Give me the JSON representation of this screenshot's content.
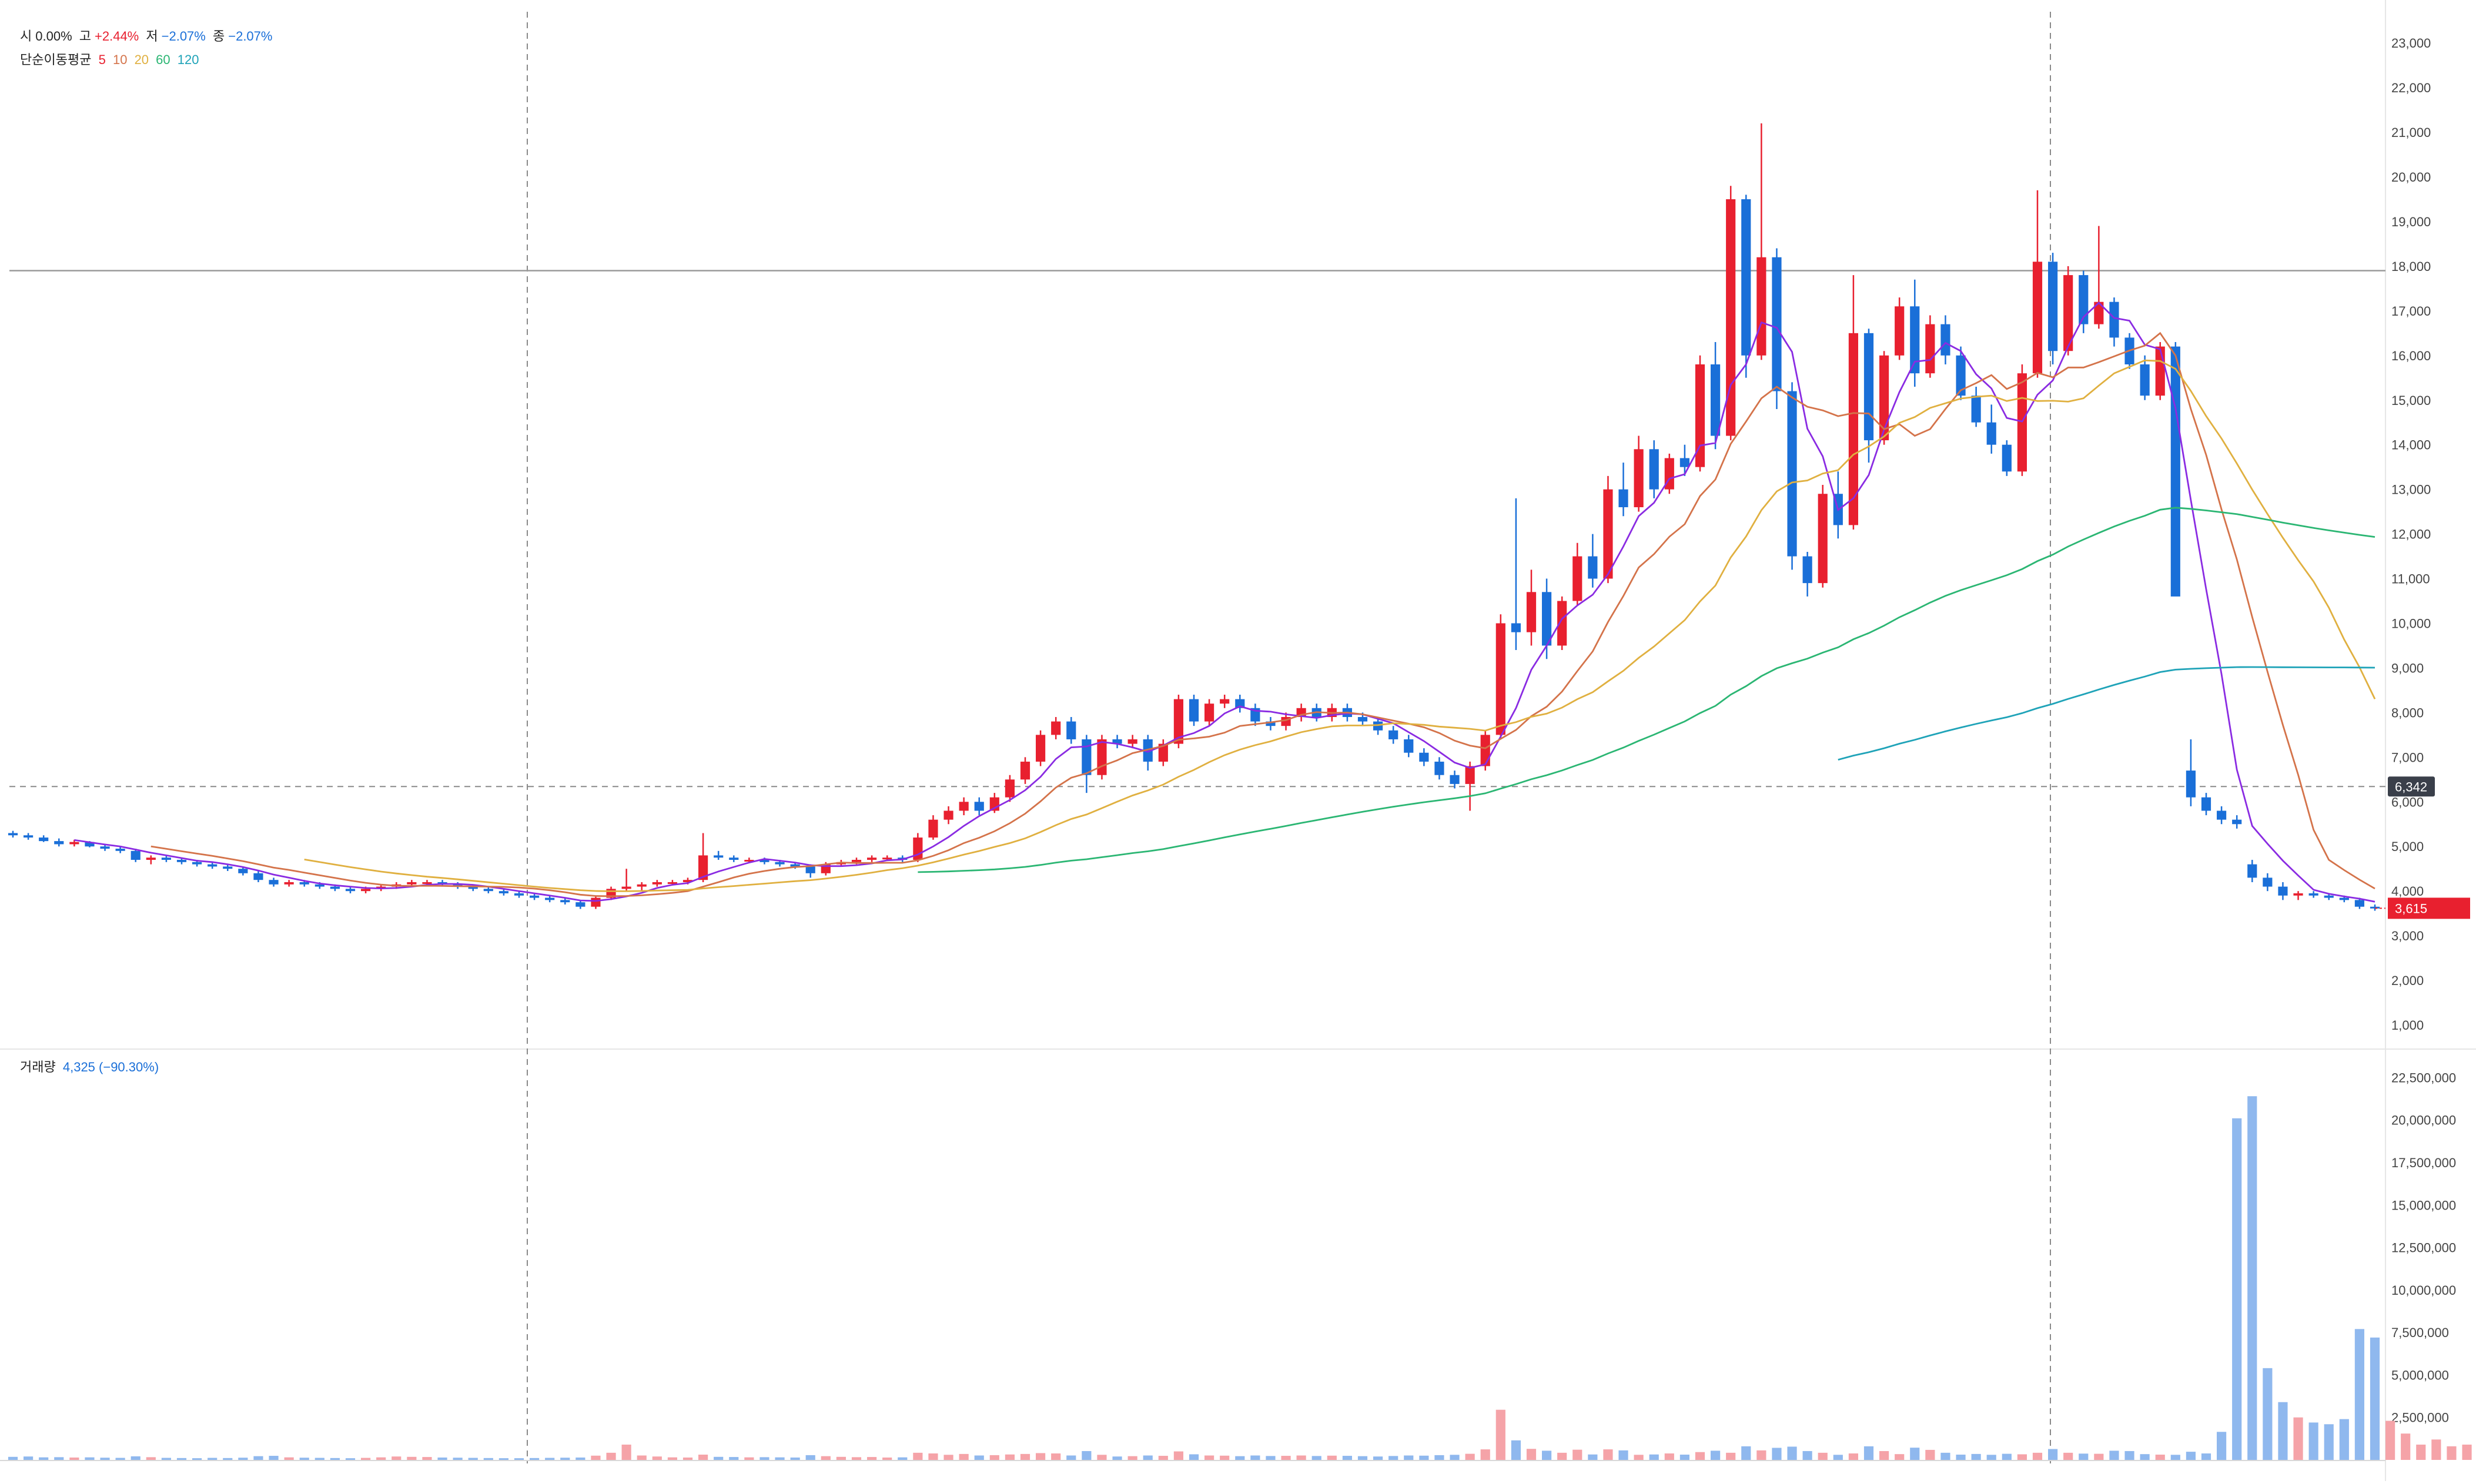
{
  "legend": {
    "open_label": "시",
    "open_value": "0.00%",
    "high_label": "고",
    "high_value": "+2.44%",
    "low_label": "저",
    "low_value": "−2.07%",
    "close_label": "종",
    "close_value": "−2.07%",
    "ma_title": "단순이동평균",
    "ma_periods": [
      "5",
      "10",
      "20",
      "60",
      "120"
    ],
    "volume_label": "거래량",
    "volume_value": "4,325 (−90.30%)"
  },
  "colors": {
    "up": "#e8202f",
    "down": "#1a6fd8",
    "ma5": "#e8202f",
    "ma5_line": "#8a2be2",
    "ma10": "#d4734a",
    "ma20": "#e0b040",
    "ma60": "#2bb673",
    "ma120": "#1fa3b8",
    "vol_up": "#f5a3a8",
    "vol_down": "#8fb8ee",
    "last_price_bg": "#e8202f",
    "crosshair_label_bg": "#3a3f4a"
  },
  "price_axis": {
    "ticks": [
      "23,000",
      "22,000",
      "21,000",
      "20,000",
      "19,000",
      "18,000",
      "17,000",
      "16,000",
      "15,000",
      "14,000",
      "13,000",
      "12,000",
      "11,000",
      "10,000",
      "9,000",
      "8,000",
      "7,000",
      "6,000",
      "5,000",
      "4,000",
      "3,000",
      "2,000",
      "1,000"
    ],
    "crosshair_label": "6,342",
    "last_price_label": "3,615"
  },
  "volume_axis": {
    "ticks": [
      "22,500,000",
      "20,000,000",
      "17,500,000",
      "15,000,000",
      "12,500,000",
      "10,000,000",
      "7,500,000",
      "5,000,000",
      "2,500,000"
    ]
  },
  "chart_data": {
    "type": "candlestick",
    "price_range": [
      500,
      23700
    ],
    "volume_range": [
      0,
      24000000
    ],
    "reference_line_price": 17900,
    "crosshair_price": 6342,
    "last_price": 3615,
    "grid": false,
    "candles": [
      [
        5300,
        5350,
        5200,
        5250
      ],
      [
        5250,
        5300,
        5150,
        5200
      ],
      [
        5200,
        5250,
        5100,
        5120
      ],
      [
        5120,
        5180,
        5000,
        5050
      ],
      [
        5050,
        5150,
        5000,
        5100
      ],
      [
        5100,
        5120,
        4980,
        5000
      ],
      [
        5000,
        5050,
        4900,
        4950
      ],
      [
        4950,
        5000,
        4850,
        4900
      ],
      [
        4900,
        4950,
        4650,
        4700
      ],
      [
        4700,
        4800,
        4600,
        4750
      ],
      [
        4750,
        4800,
        4650,
        4700
      ],
      [
        4700,
        4750,
        4600,
        4650
      ],
      [
        4650,
        4700,
        4550,
        4600
      ],
      [
        4600,
        4650,
        4500,
        4550
      ],
      [
        4550,
        4600,
        4450,
        4500
      ],
      [
        4500,
        4550,
        4350,
        4400
      ],
      [
        4400,
        4450,
        4200,
        4250
      ],
      [
        4250,
        4300,
        4100,
        4150
      ],
      [
        4150,
        4250,
        4100,
        4200
      ],
      [
        4200,
        4250,
        4100,
        4150
      ],
      [
        4150,
        4200,
        4050,
        4100
      ],
      [
        4100,
        4150,
        4000,
        4050
      ],
      [
        4050,
        4100,
        3950,
        4000
      ],
      [
        4000,
        4100,
        3950,
        4050
      ],
      [
        4050,
        4150,
        4000,
        4100
      ],
      [
        4100,
        4200,
        4050,
        4150
      ],
      [
        4150,
        4250,
        4100,
        4200
      ],
      [
        4200,
        4250,
        4150,
        4200
      ],
      [
        4200,
        4250,
        4100,
        4150
      ],
      [
        4150,
        4200,
        4050,
        4100
      ],
      [
        4100,
        4150,
        4000,
        4050
      ],
      [
        4050,
        4100,
        3950,
        4000
      ],
      [
        4000,
        4050,
        3900,
        3950
      ],
      [
        3950,
        4000,
        3850,
        3900
      ],
      [
        3900,
        3950,
        3800,
        3850
      ],
      [
        3850,
        3900,
        3750,
        3800
      ],
      [
        3800,
        3850,
        3700,
        3750
      ],
      [
        3750,
        3800,
        3600,
        3650
      ],
      [
        3650,
        3900,
        3600,
        3850
      ],
      [
        3850,
        4100,
        3800,
        4050
      ],
      [
        4050,
        4500,
        4000,
        4100
      ],
      [
        4100,
        4200,
        4000,
        4150
      ],
      [
        4150,
        4250,
        4100,
        4200
      ],
      [
        4200,
        4250,
        4150,
        4200
      ],
      [
        4200,
        4300,
        4150,
        4250
      ],
      [
        4250,
        5300,
        4200,
        4800
      ],
      [
        4800,
        4900,
        4700,
        4750
      ],
      [
        4750,
        4800,
        4650,
        4700
      ],
      [
        4700,
        4750,
        4650,
        4700
      ],
      [
        4700,
        4750,
        4600,
        4650
      ],
      [
        4650,
        4700,
        4550,
        4600
      ],
      [
        4600,
        4650,
        4500,
        4550
      ],
      [
        4550,
        4600,
        4300,
        4400
      ],
      [
        4400,
        4650,
        4350,
        4600
      ],
      [
        4600,
        4700,
        4550,
        4650
      ],
      [
        4650,
        4750,
        4600,
        4700
      ],
      [
        4700,
        4800,
        4650,
        4750
      ],
      [
        4750,
        4800,
        4700,
        4750
      ],
      [
        4750,
        4800,
        4650,
        4700
      ],
      [
        4700,
        5300,
        4650,
        5200
      ],
      [
        5200,
        5700,
        5150,
        5600
      ],
      [
        5600,
        5900,
        5500,
        5800
      ],
      [
        5800,
        6100,
        5700,
        6000
      ],
      [
        6000,
        6100,
        5700,
        5800
      ],
      [
        5800,
        6200,
        5750,
        6100
      ],
      [
        6100,
        6600,
        6000,
        6500
      ],
      [
        6500,
        7000,
        6400,
        6900
      ],
      [
        6900,
        7600,
        6800,
        7500
      ],
      [
        7500,
        7900,
        7400,
        7800
      ],
      [
        7800,
        7900,
        7300,
        7400
      ],
      [
        7400,
        7500,
        6200,
        6600
      ],
      [
        6600,
        7500,
        6500,
        7400
      ],
      [
        7400,
        7500,
        7200,
        7300
      ],
      [
        7300,
        7500,
        7200,
        7400
      ],
      [
        7400,
        7500,
        6700,
        6900
      ],
      [
        6900,
        7400,
        6800,
        7300
      ],
      [
        7300,
        8400,
        7200,
        8300
      ],
      [
        8300,
        8400,
        7700,
        7800
      ],
      [
        7800,
        8300,
        7700,
        8200
      ],
      [
        8200,
        8400,
        8100,
        8300
      ],
      [
        8300,
        8400,
        8000,
        8100
      ],
      [
        8100,
        8200,
        7700,
        7800
      ],
      [
        7800,
        7900,
        7600,
        7700
      ],
      [
        7700,
        8000,
        7600,
        7900
      ],
      [
        7900,
        8200,
        7800,
        8100
      ],
      [
        8100,
        8200,
        7800,
        7900
      ],
      [
        7900,
        8200,
        7800,
        8100
      ],
      [
        8100,
        8200,
        7800,
        7900
      ],
      [
        7900,
        8000,
        7700,
        7800
      ],
      [
        7800,
        7900,
        7500,
        7600
      ],
      [
        7600,
        7700,
        7300,
        7400
      ],
      [
        7400,
        7500,
        7000,
        7100
      ],
      [
        7100,
        7200,
        6800,
        6900
      ],
      [
        6900,
        7000,
        6500,
        6600
      ],
      [
        6600,
        6700,
        6300,
        6400
      ],
      [
        6400,
        6900,
        5800,
        6800
      ],
      [
        6800,
        7600,
        6700,
        7500
      ],
      [
        7500,
        10200,
        7400,
        10000
      ],
      [
        10000,
        12800,
        9400,
        9800
      ],
      [
        9800,
        11200,
        9500,
        10700
      ],
      [
        10700,
        11000,
        9200,
        9500
      ],
      [
        9500,
        10600,
        9400,
        10500
      ],
      [
        10500,
        11800,
        10400,
        11500
      ],
      [
        11500,
        12000,
        10800,
        11000
      ],
      [
        11000,
        13300,
        10900,
        13000
      ],
      [
        13000,
        13600,
        12400,
        12600
      ],
      [
        12600,
        14200,
        12500,
        13900
      ],
      [
        13900,
        14100,
        12800,
        13000
      ],
      [
        13000,
        13800,
        12900,
        13700
      ],
      [
        13700,
        14000,
        13300,
        13500
      ],
      [
        13500,
        16000,
        13400,
        15800
      ],
      [
        15800,
        16300,
        13900,
        14200
      ],
      [
        14200,
        19800,
        14100,
        19500
      ],
      [
        19500,
        19600,
        15500,
        16000
      ],
      [
        16000,
        21200,
        15900,
        18200
      ],
      [
        18200,
        18400,
        14800,
        15200
      ],
      [
        15200,
        15400,
        11200,
        11500
      ],
      [
        11500,
        11600,
        10600,
        10900
      ],
      [
        10900,
        13100,
        10800,
        12900
      ],
      [
        12900,
        13400,
        11900,
        12200
      ],
      [
        12200,
        17800,
        12100,
        16500
      ],
      [
        16500,
        16600,
        13600,
        14100
      ],
      [
        14100,
        16100,
        14000,
        16000
      ],
      [
        16000,
        17300,
        15900,
        17100
      ],
      [
        17100,
        17700,
        15300,
        15600
      ],
      [
        15600,
        16900,
        15500,
        16700
      ],
      [
        16700,
        16900,
        15800,
        16000
      ],
      [
        16000,
        16200,
        15000,
        15100
      ],
      [
        15100,
        15300,
        14400,
        14500
      ],
      [
        14500,
        14900,
        13800,
        14000
      ],
      [
        14000,
        14100,
        13300,
        13400
      ],
      [
        13400,
        15800,
        13300,
        15600
      ],
      [
        15600,
        19700,
        15500,
        18100
      ],
      [
        18100,
        18300,
        15800,
        16100
      ],
      [
        16100,
        18000,
        16000,
        17800
      ],
      [
        17800,
        17900,
        16500,
        16700
      ],
      [
        16700,
        18900,
        16600,
        17200
      ],
      [
        17200,
        17300,
        16200,
        16400
      ],
      [
        16400,
        16500,
        15700,
        15800
      ],
      [
        15800,
        16000,
        15000,
        15100
      ],
      [
        15100,
        16300,
        15000,
        16200
      ],
      [
        16200,
        16300,
        10700,
        10600
      ],
      [
        6700,
        7400,
        5900,
        6100
      ],
      [
        6100,
        6200,
        5700,
        5800
      ],
      [
        5800,
        5900,
        5500,
        5600
      ],
      [
        5600,
        5700,
        5400,
        5500
      ],
      [
        4600,
        4700,
        4200,
        4300
      ],
      [
        4300,
        4400,
        4000,
        4100
      ],
      [
        4100,
        4200,
        3800,
        3900
      ],
      [
        3900,
        4000,
        3800,
        3950
      ],
      [
        3950,
        4000,
        3850,
        3900
      ],
      [
        3900,
        3950,
        3800,
        3850
      ],
      [
        3850,
        3900,
        3750,
        3800
      ],
      [
        3800,
        3850,
        3600,
        3650
      ],
      [
        3650,
        3700,
        3560,
        3615
      ]
    ],
    "volume": [
      180000,
      200000,
      150000,
      160000,
      140000,
      150000,
      130000,
      120000,
      210000,
      160000,
      120000,
      110000,
      100000,
      120000,
      110000,
      130000,
      220000,
      240000,
      150000,
      130000,
      120000,
      110000,
      100000,
      120000,
      150000,
      200000,
      180000,
      170000,
      140000,
      130000,
      120000,
      110000,
      100000,
      100000,
      110000,
      120000,
      130000,
      140000,
      250000,
      420000,
      900000,
      260000,
      200000,
      150000,
      140000,
      310000,
      180000,
      170000,
      150000,
      160000,
      150000,
      140000,
      280000,
      220000,
      180000,
      160000,
      170000,
      140000,
      150000,
      420000,
      380000,
      300000,
      350000,
      260000,
      280000,
      320000,
      350000,
      400000,
      380000,
      260000,
      520000,
      300000,
      200000,
      220000,
      260000,
      240000,
      500000,
      330000,
      260000,
      250000,
      220000,
      260000,
      230000,
      240000,
      260000,
      230000,
      250000,
      240000,
      220000,
      200000,
      230000,
      260000,
      250000,
      280000,
      300000,
      360000,
      620000,
      2950000,
      1150000,
      650000,
      540000,
      420000,
      600000,
      320000,
      620000,
      560000,
      300000,
      320000,
      380000,
      310000,
      460000,
      540000,
      420000,
      800000,
      560000,
      710000,
      780000,
      520000,
      420000,
      300000,
      380000,
      800000,
      520000,
      340000,
      720000,
      590000,
      420000,
      310000,
      350000,
      300000,
      360000,
      330000,
      420000,
      640000,
      420000,
      370000,
      360000,
      540000,
      520000,
      340000,
      310000,
      300000,
      480000,
      380000,
      1650000,
      20100000,
      21400000,
      5400000,
      3400000,
      2500000,
      2200000,
      2100000,
      2400000,
      7700000,
      7200000,
      2300000,
      1550000,
      900000,
      1200000,
      800000,
      900000,
      2450000,
      2400000,
      900000
    ]
  }
}
